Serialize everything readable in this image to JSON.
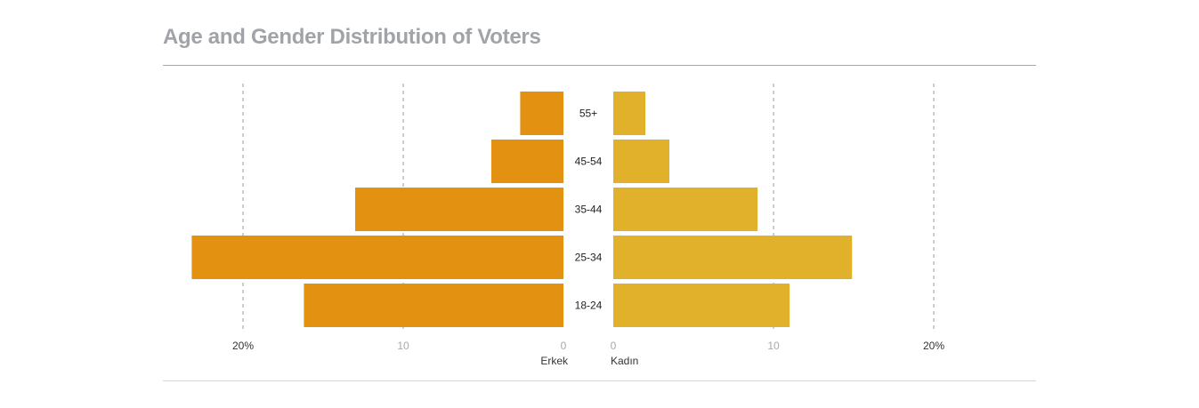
{
  "title": "Age and Gender Distribution of Voters",
  "chart_data": {
    "type": "bar",
    "orientation": "horizontal-pyramid",
    "categories": [
      "55+",
      "45-54",
      "35-44",
      "25-34",
      "18-24"
    ],
    "series": [
      {
        "name": "Erkek",
        "side": "left",
        "color": "#e39110",
        "values": [
          2.7,
          4.5,
          13.0,
          23.2,
          16.2
        ]
      },
      {
        "name": "Kadın",
        "side": "right",
        "color": "#e2b12c",
        "values": [
          2.0,
          3.5,
          9.0,
          14.9,
          11.0
        ]
      }
    ],
    "xlim": [
      0,
      20
    ],
    "left_ticks": [
      {
        "value": 20,
        "label": "20%"
      },
      {
        "value": 10,
        "label": "10"
      },
      {
        "value": 0,
        "label": "0"
      }
    ],
    "right_ticks": [
      {
        "value": 0,
        "label": "0"
      },
      {
        "value": 10,
        "label": "10"
      },
      {
        "value": 20,
        "label": "20%"
      }
    ],
    "grid": "dashed vertical lines",
    "legend": "none"
  }
}
